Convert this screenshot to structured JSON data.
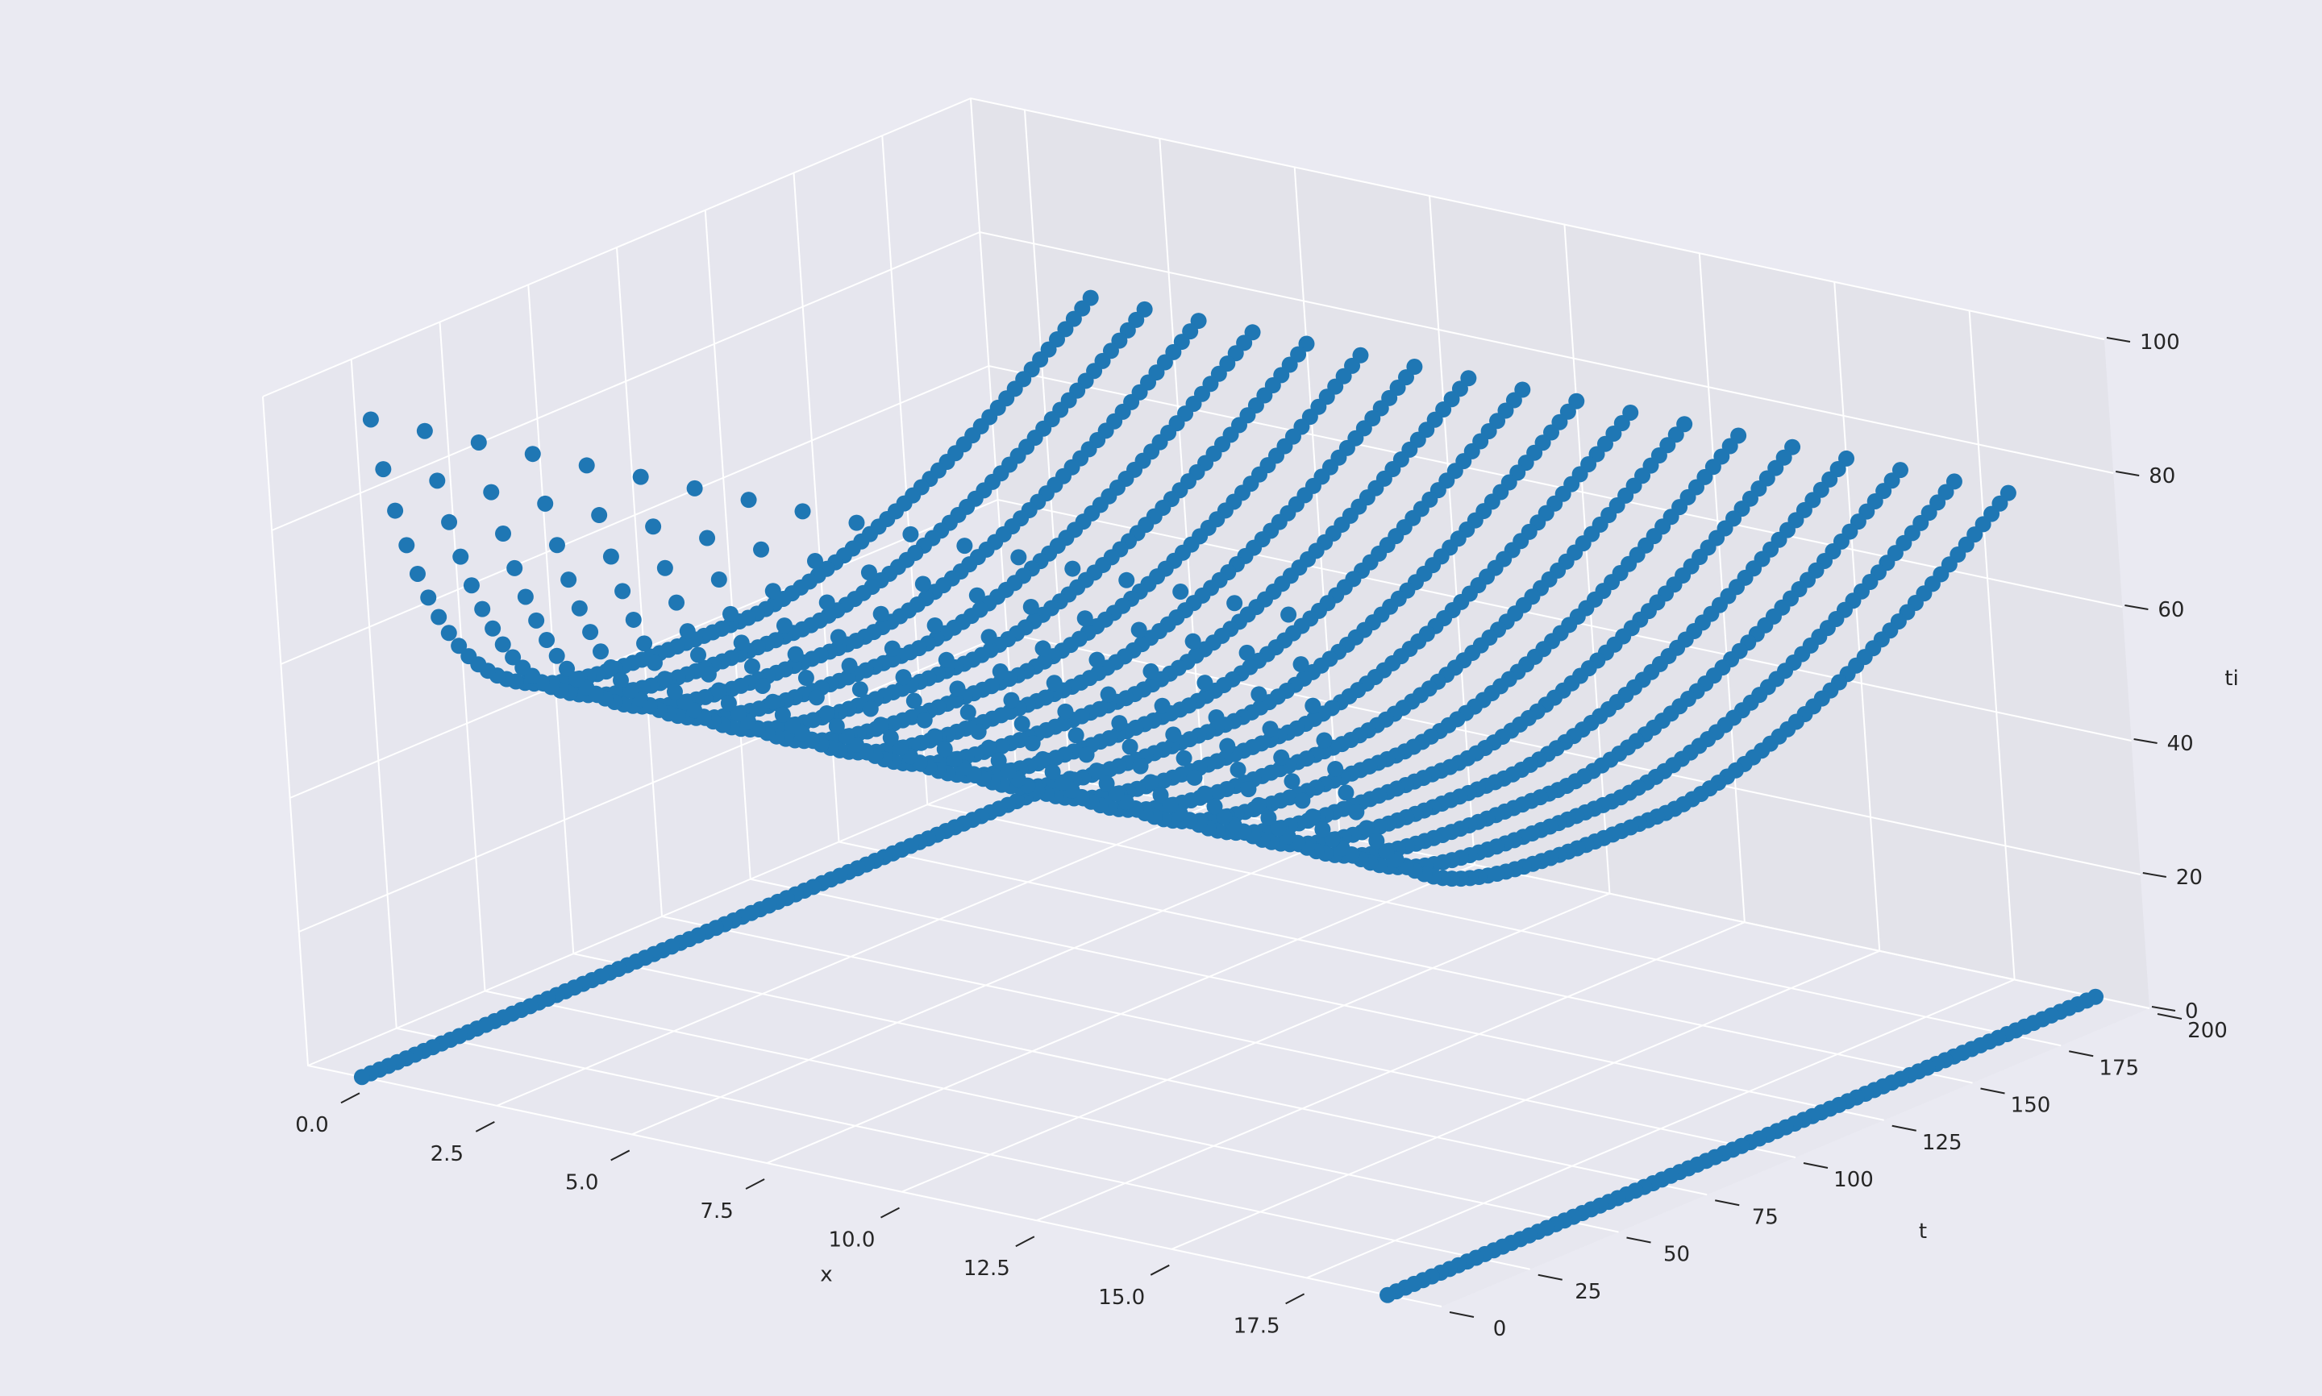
{
  "chart_data": {
    "type": "scatter3d",
    "title": "",
    "xlabel": "x",
    "ylabel": "t",
    "zlabel": "ti",
    "xlim": [
      -1,
      20
    ],
    "ylim": [
      0,
      200
    ],
    "zlim": [
      0,
      100
    ],
    "x_ticks": [
      0.0,
      2.5,
      5.0,
      7.5,
      10.0,
      12.5,
      15.0,
      17.5
    ],
    "x_tick_labels": [
      "0.0",
      "2.5",
      "5.0",
      "7.5",
      "10.0",
      "12.5",
      "15.0",
      "17.5"
    ],
    "y_ticks": [
      0,
      25,
      50,
      75,
      100,
      125,
      150,
      175,
      200
    ],
    "y_tick_labels": [
      "0",
      "25",
      "50",
      "75",
      "100",
      "125",
      "150",
      "175",
      "200"
    ],
    "z_ticks": [
      0,
      20,
      40,
      60,
      80,
      100
    ],
    "z_tick_labels": [
      "0",
      "20",
      "40",
      "60",
      "80",
      "100"
    ],
    "grid": true,
    "marker_color": "#1f77b4",
    "pane_color": "#e4e4ec",
    "background_color": "#eaeaf2",
    "series": [
      {
        "x": 1,
        "t_range": [
          0,
          200
        ],
        "ti_start": 100,
        "ti_end": 80
      },
      {
        "x": 2,
        "t_range": [
          0,
          200
        ],
        "ti_start": 100,
        "ti_end": 80
      },
      {
        "x": 3,
        "t_range": [
          0,
          200
        ],
        "ti_start": 100,
        "ti_end": 80
      },
      {
        "x": 4,
        "t_range": [
          0,
          200
        ],
        "ti_start": 100,
        "ti_end": 80
      },
      {
        "x": 5,
        "t_range": [
          0,
          200
        ],
        "ti_start": 100,
        "ti_end": 80
      },
      {
        "x": 6,
        "t_range": [
          0,
          200
        ],
        "ti_start": 100,
        "ti_end": 80
      },
      {
        "x": 7,
        "t_range": [
          0,
          200
        ],
        "ti_start": 100,
        "ti_end": 80
      },
      {
        "x": 8,
        "t_range": [
          0,
          200
        ],
        "ti_start": 100,
        "ti_end": 80
      },
      {
        "x": 9,
        "t_range": [
          0,
          200
        ],
        "ti_start": 100,
        "ti_end": 80
      },
      {
        "x": 10,
        "t_range": [
          0,
          200
        ],
        "ti_start": 100,
        "ti_end": 80
      },
      {
        "x": 11,
        "t_range": [
          0,
          200
        ],
        "ti_start": 100,
        "ti_end": 80
      },
      {
        "x": 12,
        "t_range": [
          0,
          200
        ],
        "ti_start": 100,
        "ti_end": 80
      },
      {
        "x": 13,
        "t_range": [
          0,
          200
        ],
        "ti_start": 100,
        "ti_end": 80
      },
      {
        "x": 14,
        "t_range": [
          0,
          200
        ],
        "ti_start": 100,
        "ti_end": 80
      },
      {
        "x": 15,
        "t_range": [
          0,
          200
        ],
        "ti_start": 100,
        "ti_end": 80
      },
      {
        "x": 16,
        "t_range": [
          0,
          200
        ],
        "ti_start": 100,
        "ti_end": 80
      },
      {
        "x": 17,
        "t_range": [
          0,
          200
        ],
        "ti_start": 100,
        "ti_end": 80
      },
      {
        "x": 18,
        "t_range": [
          0,
          200
        ],
        "ti_start": 100,
        "ti_end": 80
      },
      {
        "x": 0,
        "t_range": [
          0,
          200
        ],
        "ti_start": 0,
        "ti_end": 0
      },
      {
        "x": 19,
        "t_range": [
          0,
          200
        ],
        "ti_start": 0,
        "ti_end": 0
      }
    ]
  }
}
